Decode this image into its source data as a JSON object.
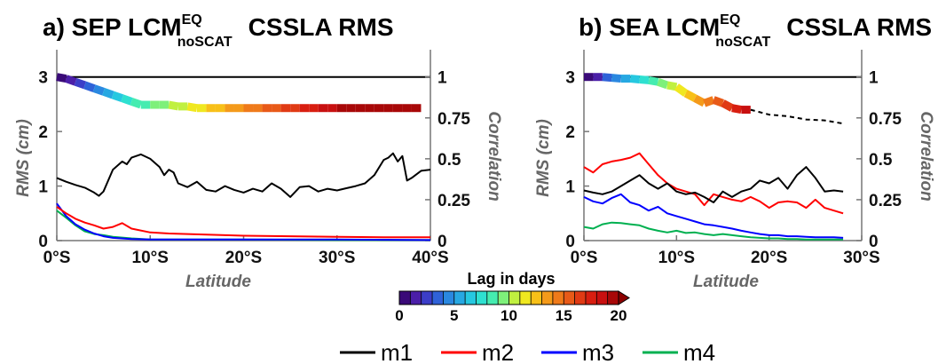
{
  "chart_data": [
    {
      "type": "line",
      "panel": "a",
      "title": {
        "main": "a) SEP LCM",
        "sup": "EQ",
        "sub": "noSCAT",
        "rest": "CSSLA RMS"
      },
      "xlabel": "Latitude",
      "ylabel": "RMS (cm)",
      "y2label": "Correlation",
      "xlim": [
        0,
        40
      ],
      "ylim": [
        0,
        3.5
      ],
      "y2lim": [
        0,
        1.1667
      ],
      "xticks": [
        "0°S",
        "10°S",
        "20°S",
        "30°S",
        "40°S"
      ],
      "yticks": [
        "0",
        "1",
        "2",
        "3"
      ],
      "y2ticks": [
        "0",
        "0.25",
        "0.5",
        "0.75",
        "1"
      ],
      "reference_line_correlation": 1,
      "series": [
        {
          "name": "m1",
          "color": "#000000",
          "x": [
            0,
            1,
            2,
            3,
            4,
            4.5,
            5,
            6,
            7,
            7.5,
            8,
            9,
            10,
            11,
            11.5,
            12,
            12.5,
            13,
            14,
            15,
            16,
            17,
            18,
            19,
            20,
            21,
            22,
            23,
            24,
            25,
            26,
            27,
            28,
            29,
            30,
            31,
            32,
            33,
            34,
            35,
            35.5,
            36,
            36.5,
            37,
            37.5,
            38,
            39,
            40
          ],
          "y": [
            1.15,
            1.08,
            1.02,
            0.97,
            0.88,
            0.82,
            0.9,
            1.3,
            1.45,
            1.4,
            1.52,
            1.58,
            1.5,
            1.35,
            1.2,
            1.3,
            1.25,
            1.05,
            0.98,
            1.08,
            0.93,
            0.9,
            1.0,
            0.93,
            0.88,
            0.95,
            0.9,
            1.05,
            0.95,
            0.8,
            0.98,
            1.0,
            0.9,
            0.95,
            0.92,
            0.96,
            1.0,
            1.05,
            1.2,
            1.48,
            1.52,
            1.6,
            1.45,
            1.55,
            1.1,
            1.15,
            1.28,
            1.3
          ]
        },
        {
          "name": "m2",
          "color": "#ff0000",
          "x": [
            0,
            1,
            2,
            3,
            4,
            5,
            6,
            7,
            8,
            10,
            12,
            14,
            16,
            18,
            20,
            25,
            30,
            35,
            40
          ],
          "y": [
            0.62,
            0.5,
            0.4,
            0.33,
            0.28,
            0.22,
            0.25,
            0.32,
            0.22,
            0.15,
            0.13,
            0.12,
            0.11,
            0.1,
            0.09,
            0.08,
            0.07,
            0.06,
            0.06
          ]
        },
        {
          "name": "m3",
          "color": "#0000ff",
          "x": [
            0,
            1,
            2,
            3,
            4,
            5,
            6,
            8,
            10,
            15,
            20,
            30,
            40
          ],
          "y": [
            0.68,
            0.45,
            0.3,
            0.2,
            0.13,
            0.08,
            0.05,
            0.03,
            0.02,
            0.02,
            0.02,
            0.02,
            0.01
          ]
        },
        {
          "name": "m4",
          "color": "#00b050",
          "x": [
            0,
            1,
            2,
            3,
            4,
            5,
            6,
            8,
            10,
            15,
            20,
            30,
            40
          ],
          "y": [
            0.55,
            0.42,
            0.28,
            0.17,
            0.12,
            0.1,
            0.07,
            0.04,
            0.02,
            0.02,
            0.02,
            0.01,
            0.01
          ]
        }
      ],
      "lag_correlation": {
        "x": [
          0,
          1,
          2,
          3,
          4,
          5,
          6,
          7,
          8,
          9,
          10,
          11,
          12,
          13,
          14,
          15,
          16,
          17,
          18,
          19,
          20,
          21,
          22,
          23,
          24,
          25,
          26,
          27,
          28,
          29,
          30,
          31,
          32,
          33,
          34,
          35,
          36,
          37,
          38,
          39
        ],
        "corr": [
          1,
          0.99,
          0.97,
          0.95,
          0.93,
          0.91,
          0.89,
          0.87,
          0.85,
          0.83,
          0.83,
          0.83,
          0.83,
          0.82,
          0.82,
          0.81,
          0.81,
          0.81,
          0.81,
          0.81,
          0.81,
          0.81,
          0.81,
          0.81,
          0.81,
          0.81,
          0.81,
          0.81,
          0.81,
          0.81,
          0.81,
          0.81,
          0.81,
          0.81,
          0.81,
          0.81,
          0.81,
          0.81,
          0.81,
          0.81
        ],
        "lag": [
          0,
          1,
          2,
          3,
          4,
          5,
          6,
          7,
          8,
          8.5,
          9,
          9.5,
          10,
          10.5,
          11,
          11.5,
          12,
          12.5,
          13,
          13.5,
          14,
          14.5,
          15,
          15.5,
          16,
          16.5,
          17,
          17.5,
          18,
          18.5,
          19,
          19.5,
          20,
          20.5,
          21,
          21.5,
          22,
          22.5,
          23,
          23.5
        ]
      }
    },
    {
      "type": "line",
      "panel": "b",
      "title": {
        "main": "b) SEA LCM",
        "sup": "EQ",
        "sub": "noSCAT",
        "rest": "CSSLA RMS"
      },
      "xlabel": "Latitude",
      "ylabel": "RMS (cm)",
      "y2label": "Correlation",
      "xlim": [
        0,
        30
      ],
      "ylim": [
        0,
        3.5
      ],
      "y2lim": [
        0,
        1.1667
      ],
      "xticks": [
        "0°S",
        "10°S",
        "20°S",
        "30°S"
      ],
      "yticks": [
        "0",
        "1",
        "2",
        "3"
      ],
      "y2ticks": [
        "0",
        "0.25",
        "0.5",
        "0.75",
        "1"
      ],
      "reference_line_correlation": 1,
      "series": [
        {
          "name": "m1",
          "color": "#000000",
          "x": [
            0,
            1,
            2,
            3,
            4,
            5,
            6,
            7,
            8,
            9,
            10,
            11,
            12,
            13,
            14,
            15,
            16,
            17,
            18,
            19,
            20,
            21,
            22,
            23,
            24,
            25,
            26,
            27,
            28
          ],
          "y": [
            0.92,
            0.88,
            0.85,
            0.9,
            1.0,
            1.1,
            1.2,
            1.05,
            0.95,
            1.05,
            0.9,
            0.85,
            0.88,
            0.8,
            0.7,
            0.9,
            0.8,
            0.9,
            0.95,
            1.1,
            1.05,
            1.15,
            0.95,
            1.2,
            1.35,
            1.15,
            0.9,
            0.92,
            0.9
          ]
        },
        {
          "name": "m2",
          "color": "#ff0000",
          "x": [
            0,
            1,
            2,
            3,
            4,
            5,
            6,
            7,
            8,
            9,
            10,
            11,
            12,
            13,
            14,
            15,
            16,
            17,
            18,
            19,
            20,
            21,
            22,
            23,
            24,
            25,
            26,
            27,
            28
          ],
          "y": [
            1.35,
            1.25,
            1.4,
            1.45,
            1.48,
            1.52,
            1.6,
            1.4,
            1.2,
            1.05,
            0.95,
            0.9,
            0.85,
            0.65,
            0.85,
            0.8,
            0.75,
            0.72,
            0.8,
            0.72,
            0.6,
            0.7,
            0.72,
            0.7,
            0.6,
            0.75,
            0.6,
            0.55,
            0.5
          ]
        },
        {
          "name": "m3",
          "color": "#0000ff",
          "x": [
            0,
            1,
            2,
            3,
            4,
            5,
            6,
            7,
            8,
            9,
            10,
            11,
            12,
            13,
            14,
            15,
            16,
            17,
            18,
            19,
            20,
            21,
            22,
            23,
            24,
            25,
            26,
            27,
            28
          ],
          "y": [
            0.8,
            0.72,
            0.68,
            0.78,
            0.85,
            0.7,
            0.65,
            0.55,
            0.62,
            0.5,
            0.45,
            0.4,
            0.35,
            0.3,
            0.28,
            0.25,
            0.22,
            0.18,
            0.15,
            0.12,
            0.1,
            0.1,
            0.08,
            0.08,
            0.07,
            0.06,
            0.06,
            0.06,
            0.05
          ]
        },
        {
          "name": "m4",
          "color": "#00b050",
          "x": [
            0,
            1,
            2,
            3,
            4,
            5,
            6,
            7,
            8,
            9,
            10,
            11,
            12,
            13,
            14,
            15,
            16,
            17,
            18,
            19,
            20,
            21,
            22,
            23,
            24,
            25,
            26,
            27,
            28
          ],
          "y": [
            0.25,
            0.22,
            0.3,
            0.33,
            0.32,
            0.3,
            0.28,
            0.22,
            0.18,
            0.15,
            0.18,
            0.14,
            0.15,
            0.12,
            0.1,
            0.12,
            0.1,
            0.08,
            0.06,
            0.05,
            0.04,
            0.04,
            0.03,
            0.03,
            0.02,
            0.02,
            0.02,
            0.02,
            0.02
          ]
        }
      ],
      "lag_correlation": {
        "x": [
          0,
          1,
          2,
          3,
          4,
          5,
          6,
          7,
          8,
          9,
          10,
          11,
          12,
          13,
          14,
          15,
          16,
          17,
          18
        ],
        "corr": [
          1,
          1,
          1,
          0.995,
          0.99,
          0.99,
          0.985,
          0.98,
          0.97,
          0.95,
          0.94,
          0.9,
          0.87,
          0.84,
          0.86,
          0.84,
          0.81,
          0.8,
          0.8
        ],
        "lag": [
          0,
          1,
          3,
          4,
          5,
          6,
          7,
          8,
          9,
          10,
          11,
          12,
          13,
          14,
          15,
          16,
          17,
          18,
          18.5
        ],
        "dashed_x": [
          18,
          20,
          22,
          24,
          26,
          28
        ],
        "dashed_corr": [
          0.8,
          0.77,
          0.76,
          0.74,
          0.735,
          0.715
        ]
      }
    }
  ],
  "colorbar": {
    "title": "Lag in days",
    "ticks": [
      "0",
      "5",
      "10",
      "15",
      "20"
    ],
    "min": 0,
    "max": 20,
    "colors": [
      "#3a0a78",
      "#4b1fa8",
      "#3c3ec8",
      "#2f62d8",
      "#2a88e0",
      "#27a8e2",
      "#26c8e0",
      "#2ee0d0",
      "#45ecb0",
      "#7ef07a",
      "#c0f040",
      "#f0e820",
      "#f8c018",
      "#f49a1a",
      "#ef7a1a",
      "#e85a18",
      "#e03a14",
      "#d81e10",
      "#c81010",
      "#a80808"
    ]
  },
  "legend": [
    {
      "label": "m1",
      "color": "#000000"
    },
    {
      "label": "m2",
      "color": "#ff0000"
    },
    {
      "label": "m3",
      "color": "#0000ff"
    },
    {
      "label": "m4",
      "color": "#00b050"
    }
  ]
}
